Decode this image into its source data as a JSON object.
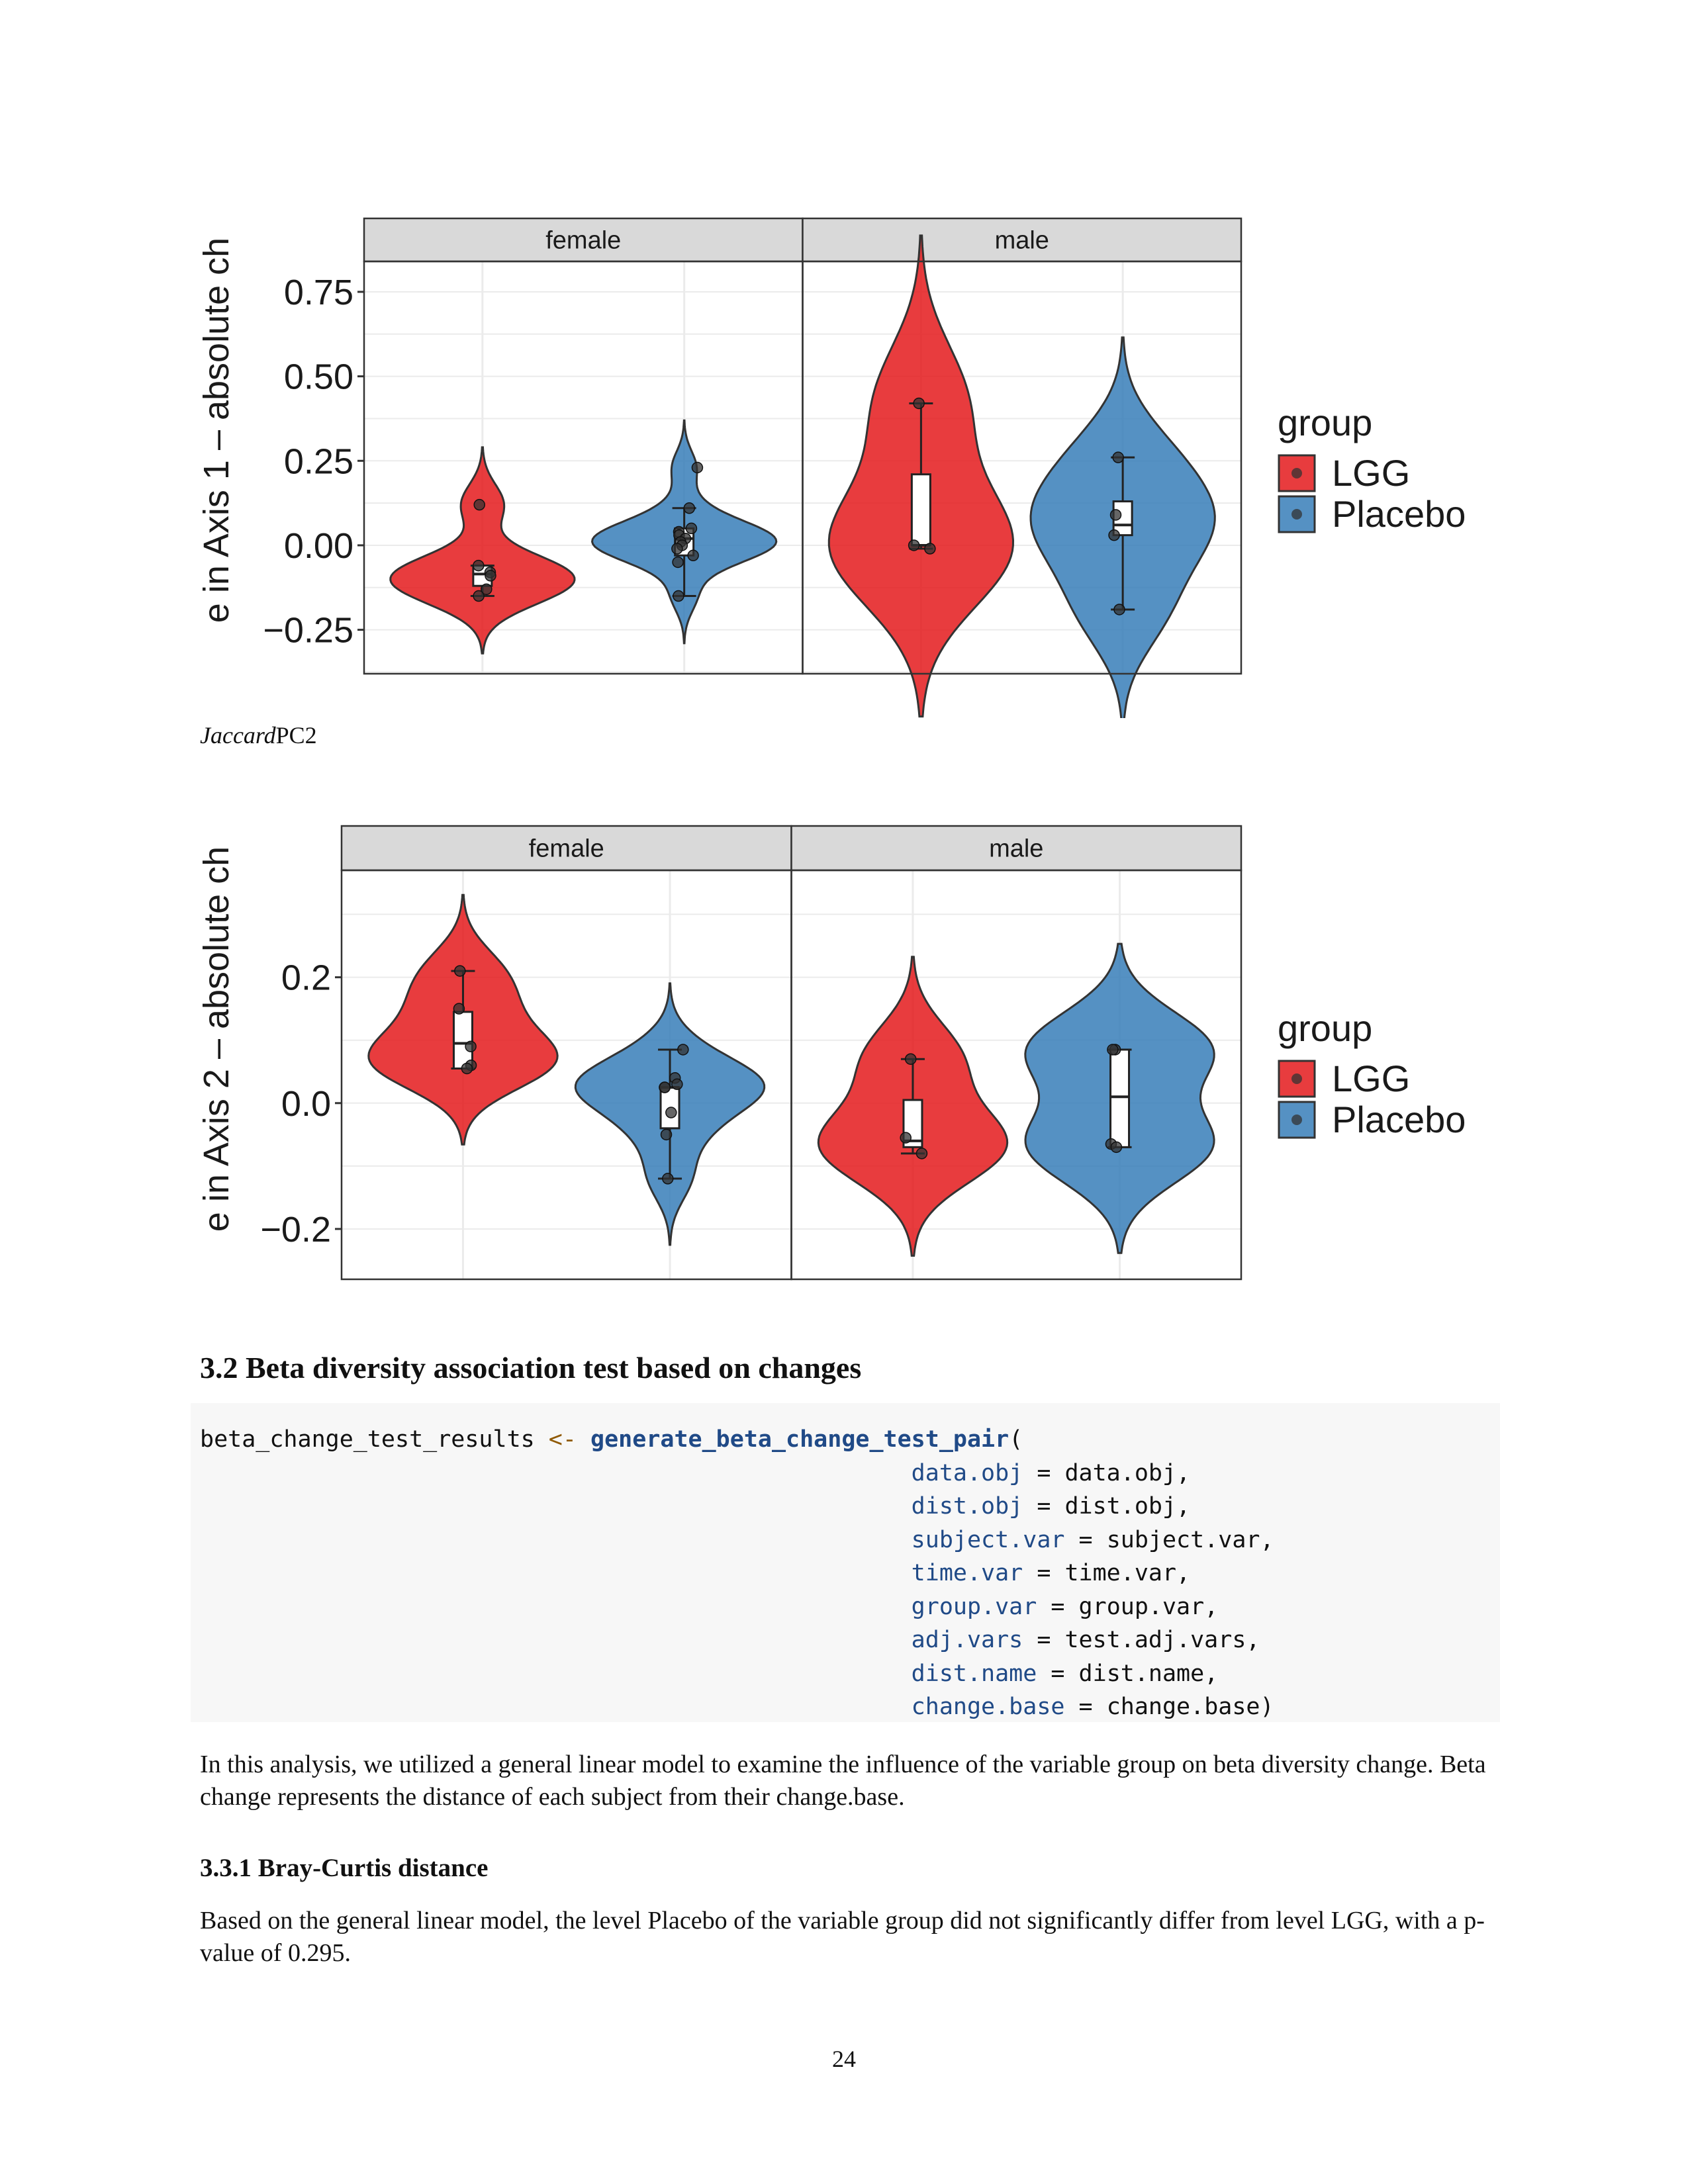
{
  "figure1": {
    "ylabel": "e in  Axis  1  –  absolute ch",
    "panels": [
      "female",
      "male"
    ],
    "yticks": [
      "0.75",
      "0.50",
      "0.25",
      "0.00",
      "−0.25"
    ],
    "legend": {
      "title": "group",
      "items": [
        "LGG",
        "Placebo"
      ]
    }
  },
  "caption": {
    "italic": "Jaccard",
    "normal": "PC2"
  },
  "figure2": {
    "ylabel": "e in  Axis  2  –  absolute ch",
    "panels": [
      "female",
      "male"
    ],
    "yticks": [
      "0.2",
      "0.0",
      "−0.2"
    ],
    "legend": {
      "title": "group",
      "items": [
        "LGG",
        "Placebo"
      ]
    }
  },
  "colors": {
    "LGG": "#e41a1c",
    "Placebo": "#377eb8",
    "strip": "#d9d9d9",
    "grid": "#ebebeb"
  },
  "chart_data": [
    {
      "type": "violin",
      "ylabel": "e in  Axis  1  –  absolute ch",
      "ylim": [
        -0.38,
        0.84
      ],
      "facets": [
        "female",
        "male"
      ],
      "groups": [
        "LGG",
        "Placebo"
      ],
      "series": [
        {
          "facet": "female",
          "group": "LGG",
          "points": [
            0.12,
            -0.06,
            -0.08,
            -0.09,
            -0.13,
            -0.15
          ],
          "box": {
            "min": -0.15,
            "q1": -0.12,
            "median": -0.085,
            "q3": -0.06,
            "max": -0.06
          }
        },
        {
          "facet": "female",
          "group": "Placebo",
          "points": [
            0.23,
            0.11,
            0.05,
            0.04,
            0.03,
            0.02,
            0.01,
            0.0,
            -0.01,
            -0.03,
            -0.05,
            -0.15
          ],
          "box": {
            "min": -0.15,
            "q1": -0.03,
            "median": 0.02,
            "q3": 0.05,
            "max": 0.11
          }
        },
        {
          "facet": "male",
          "group": "LGG",
          "points": [
            0.42,
            0.0,
            -0.01
          ],
          "box": {
            "min": -0.01,
            "q1": 0.0,
            "median": 0.0,
            "q3": 0.21,
            "max": 0.42
          }
        },
        {
          "facet": "male",
          "group": "Placebo",
          "points": [
            0.26,
            0.09,
            0.03,
            -0.19
          ],
          "box": {
            "min": -0.19,
            "q1": 0.03,
            "median": 0.06,
            "q3": 0.13,
            "max": 0.26
          }
        }
      ]
    },
    {
      "type": "violin",
      "ylabel": "e in  Axis  2  –  absolute ch",
      "ylim": [
        -0.28,
        0.37
      ],
      "facets": [
        "female",
        "male"
      ],
      "groups": [
        "LGG",
        "Placebo"
      ],
      "series": [
        {
          "facet": "female",
          "group": "LGG",
          "points": [
            0.21,
            0.15,
            0.09,
            0.06,
            0.055
          ],
          "box": {
            "min": 0.055,
            "q1": 0.055,
            "median": 0.095,
            "q3": 0.145,
            "max": 0.21
          }
        },
        {
          "facet": "female",
          "group": "Placebo",
          "points": [
            0.085,
            0.04,
            0.03,
            0.025,
            0.025,
            -0.015,
            -0.05,
            -0.12
          ],
          "box": {
            "min": -0.12,
            "q1": -0.04,
            "median": 0.025,
            "q3": 0.025,
            "max": 0.085
          }
        },
        {
          "facet": "male",
          "group": "LGG",
          "points": [
            0.07,
            -0.055,
            -0.08
          ],
          "box": {
            "min": -0.08,
            "q1": -0.07,
            "median": -0.06,
            "q3": 0.005,
            "max": 0.07
          }
        },
        {
          "facet": "male",
          "group": "Placebo",
          "points": [
            0.085,
            0.085,
            -0.065,
            -0.07
          ],
          "box": {
            "min": -0.07,
            "q1": -0.07,
            "median": 0.01,
            "q3": 0.085,
            "max": 0.085
          }
        }
      ]
    }
  ],
  "section": {
    "heading": "3.2 Beta diversity association test based on changes"
  },
  "code": {
    "line1_lhs": "beta_change_test_results ",
    "assign_op": "<-",
    "fn_name": "generate_beta_change_test_pair",
    "open_paren": "(",
    "args": [
      {
        "name": "data.obj",
        "eq": " = ",
        "value": "data.obj,"
      },
      {
        "name": "dist.obj",
        "eq": " = ",
        "value": "dist.obj,"
      },
      {
        "name": "subject.var",
        "eq": " = ",
        "value": "subject.var,"
      },
      {
        "name": "time.var",
        "eq": " = ",
        "value": "time.var,"
      },
      {
        "name": "group.var",
        "eq": " = ",
        "value": "group.var,"
      },
      {
        "name": "adj.vars",
        "eq": " = ",
        "value": "test.adj.vars,"
      },
      {
        "name": "dist.name",
        "eq": " = ",
        "value": "dist.name,"
      },
      {
        "name": "change.base",
        "eq": " = ",
        "value": "change.base)"
      }
    ]
  },
  "para1": "In this analysis, we utilized a general linear model to examine the influence of the variable group on beta diversity change. Beta change represents the distance of each subject from their change.base.",
  "subsection": {
    "heading": "3.3.1 Bray-Curtis distance"
  },
  "para2": "Based on the general linear model, the level Placebo of the variable group did not significantly differ from level LGG, with a p-value of 0.295.",
  "page_number": "24"
}
